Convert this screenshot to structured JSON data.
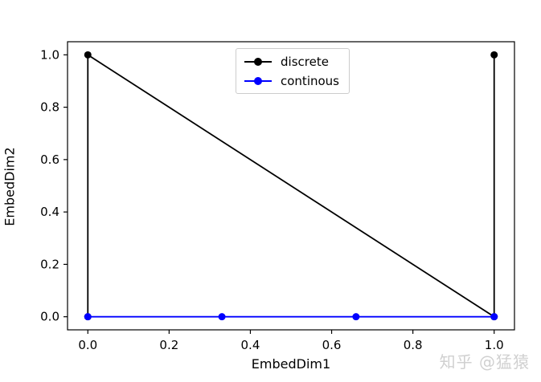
{
  "watermark": {
    "text": "知乎 @猛猿"
  },
  "chart_data": {
    "type": "line",
    "title": "",
    "xlabel": "EmbedDim1",
    "ylabel": "EmbedDim2",
    "xlim": [
      -0.05,
      1.05
    ],
    "ylim": [
      -0.05,
      1.05
    ],
    "xticks": [
      0.0,
      0.2,
      0.4,
      0.6,
      0.8,
      1.0
    ],
    "xtick_labels": [
      "0.0",
      "0.2",
      "0.4",
      "0.6",
      "0.8",
      "1.0"
    ],
    "yticks": [
      0.0,
      0.2,
      0.4,
      0.6,
      0.8,
      1.0
    ],
    "ytick_labels": [
      "0.0",
      "0.2",
      "0.4",
      "0.6",
      "0.8",
      "1.0"
    ],
    "grid": false,
    "legend_position": "upper center",
    "axis_color": "#000000",
    "series": [
      {
        "name": "discrete",
        "color": "#000000",
        "marker": "circle",
        "x": [
          0.0,
          0.0,
          1.0,
          1.0
        ],
        "y": [
          0.0,
          1.0,
          0.0,
          1.0
        ]
      },
      {
        "name": "continous",
        "color": "#0000ff",
        "marker": "circle",
        "x": [
          0.0,
          0.33,
          0.66,
          1.0
        ],
        "y": [
          0.0,
          0.0,
          0.0,
          0.0
        ]
      }
    ]
  }
}
